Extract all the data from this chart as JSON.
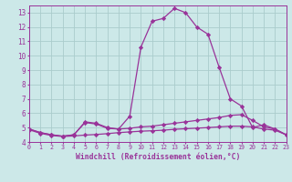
{
  "xlabel": "Windchill (Refroidissement éolien,°C)",
  "background_color": "#cce8e8",
  "grid_color": "#aacccc",
  "line_color": "#993399",
  "xmin": 0,
  "xmax": 23,
  "ymin": 4,
  "ymax": 13.5,
  "yticks": [
    4,
    5,
    6,
    7,
    8,
    9,
    10,
    11,
    12,
    13
  ],
  "xticks": [
    0,
    1,
    2,
    3,
    4,
    5,
    6,
    7,
    8,
    9,
    10,
    11,
    12,
    13,
    14,
    15,
    16,
    17,
    18,
    19,
    20,
    21,
    22,
    23
  ],
  "series": [
    {
      "x": [
        0,
        1,
        2,
        3,
        4,
        5,
        6,
        7,
        8,
        9,
        10,
        11,
        12,
        13,
        14,
        15,
        16,
        17,
        18,
        19,
        20,
        21,
        22,
        23
      ],
      "y": [
        4.9,
        4.65,
        4.5,
        4.4,
        4.5,
        5.4,
        5.3,
        5.0,
        4.9,
        5.8,
        10.6,
        12.4,
        12.6,
        13.3,
        13.0,
        12.0,
        11.5,
        9.2,
        7.0,
        6.5,
        5.0,
        5.2,
        4.9,
        4.5
      ]
    },
    {
      "x": [
        0,
        1,
        2,
        3,
        4,
        5,
        6,
        7,
        8,
        9,
        10,
        11,
        12,
        13,
        14,
        15,
        16,
        17,
        18,
        19,
        20,
        21,
        22,
        23
      ],
      "y": [
        4.9,
        4.65,
        4.5,
        4.4,
        4.5,
        5.35,
        5.25,
        4.95,
        4.9,
        4.95,
        5.05,
        5.1,
        5.2,
        5.3,
        5.4,
        5.5,
        5.6,
        5.7,
        5.85,
        5.9,
        5.5,
        5.05,
        4.9,
        4.5
      ]
    },
    {
      "x": [
        0,
        1,
        2,
        3,
        4,
        5,
        6,
        7,
        8,
        9,
        10,
        11,
        12,
        13,
        14,
        15,
        16,
        17,
        18,
        19,
        20,
        21,
        22,
        23
      ],
      "y": [
        4.85,
        4.6,
        4.45,
        4.38,
        4.42,
        4.48,
        4.52,
        4.58,
        4.65,
        4.7,
        4.75,
        4.78,
        4.82,
        4.88,
        4.92,
        4.96,
        5.0,
        5.05,
        5.1,
        5.1,
        5.05,
        4.9,
        4.82,
        4.5
      ]
    }
  ]
}
